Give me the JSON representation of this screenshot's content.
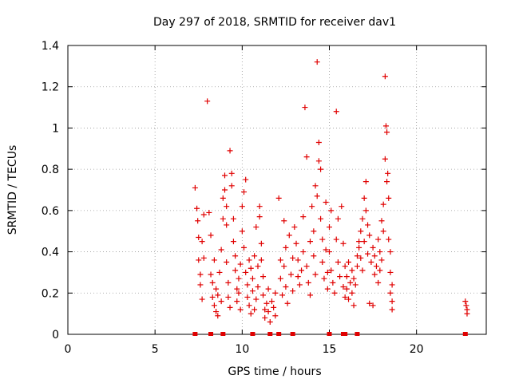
{
  "chart_data": {
    "type": "scatter",
    "title": "Day 297 of 2018, SRMTID for receiver dav1",
    "xlabel": "GPS time / hours",
    "ylabel": "SRMTID / TECUs",
    "xlim": [
      0,
      24
    ],
    "ylim": [
      0,
      1.4
    ],
    "x_ticks": [
      0,
      5,
      10,
      15,
      20
    ],
    "y_ticks": [
      0,
      0.2,
      0.4,
      0.6,
      0.8,
      1.0,
      1.2,
      1.4
    ],
    "x_tick_labels": [
      "0",
      "5",
      "10",
      "15",
      "20"
    ],
    "y_tick_labels": [
      "0",
      "0.2",
      "0.4",
      "0.6",
      "0.8",
      "1",
      "1.2",
      "1.4"
    ],
    "grid": true,
    "marker": "+",
    "marker_color": "#e00000",
    "zero_markers_x": [
      7.3,
      8.2,
      8.9,
      10.6,
      11.6,
      12.1,
      12.9,
      15.0,
      15.8,
      15.9,
      16.6,
      22.8
    ],
    "series": [
      {
        "name": "SRMTID",
        "color": "#e00000",
        "points": [
          [
            7.3,
            0.71
          ],
          [
            7.4,
            0.61
          ],
          [
            7.45,
            0.55
          ],
          [
            7.5,
            0.47
          ],
          [
            7.5,
            0.36
          ],
          [
            7.6,
            0.29
          ],
          [
            7.6,
            0.24
          ],
          [
            7.7,
            0.17
          ],
          [
            7.7,
            0.45
          ],
          [
            7.8,
            0.37
          ],
          [
            7.8,
            0.58
          ],
          [
            8.0,
            1.13
          ],
          [
            8.1,
            0.59
          ],
          [
            8.2,
            0.48
          ],
          [
            8.2,
            0.29
          ],
          [
            8.3,
            0.25
          ],
          [
            8.3,
            0.18
          ],
          [
            8.4,
            0.14
          ],
          [
            8.4,
            0.36
          ],
          [
            8.5,
            0.22
          ],
          [
            8.5,
            0.11
          ],
          [
            8.6,
            0.09
          ],
          [
            8.6,
            0.19
          ],
          [
            8.7,
            0.3
          ],
          [
            8.8,
            0.41
          ],
          [
            8.8,
            0.16
          ],
          [
            8.9,
            0.56
          ],
          [
            8.9,
            0.66
          ],
          [
            9.0,
            0.77
          ],
          [
            9.0,
            0.7
          ],
          [
            9.1,
            0.62
          ],
          [
            9.1,
            0.53
          ],
          [
            9.1,
            0.35
          ],
          [
            9.2,
            0.25
          ],
          [
            9.2,
            0.18
          ],
          [
            9.3,
            0.13
          ],
          [
            9.3,
            0.89
          ],
          [
            9.4,
            0.78
          ],
          [
            9.4,
            0.72
          ],
          [
            9.5,
            0.56
          ],
          [
            9.5,
            0.45
          ],
          [
            9.6,
            0.38
          ],
          [
            9.6,
            0.31
          ],
          [
            9.7,
            0.22
          ],
          [
            9.7,
            0.16
          ],
          [
            9.8,
            0.2
          ],
          [
            9.8,
            0.27
          ],
          [
            9.9,
            0.34
          ],
          [
            9.9,
            0.12
          ],
          [
            10.0,
            0.62
          ],
          [
            10.0,
            0.5
          ],
          [
            10.1,
            0.69
          ],
          [
            10.1,
            0.42
          ],
          [
            10.2,
            0.75
          ],
          [
            10.2,
            0.3
          ],
          [
            10.3,
            0.24
          ],
          [
            10.3,
            0.18
          ],
          [
            10.4,
            0.14
          ],
          [
            10.4,
            0.36
          ],
          [
            10.5,
            0.32
          ],
          [
            10.5,
            0.1
          ],
          [
            10.6,
            0.21
          ],
          [
            10.6,
            0.27
          ],
          [
            10.7,
            0.38
          ],
          [
            10.7,
            0.12
          ],
          [
            10.8,
            0.52
          ],
          [
            10.8,
            0.17
          ],
          [
            10.9,
            0.23
          ],
          [
            10.9,
            0.33
          ],
          [
            11.0,
            0.62
          ],
          [
            11.0,
            0.57
          ],
          [
            11.1,
            0.44
          ],
          [
            11.1,
            0.36
          ],
          [
            11.2,
            0.28
          ],
          [
            11.2,
            0.19
          ],
          [
            11.3,
            0.12
          ],
          [
            11.3,
            0.08
          ],
          [
            11.4,
            0.15
          ],
          [
            11.5,
            0.22
          ],
          [
            11.5,
            0.11
          ],
          [
            11.6,
            0.06
          ],
          [
            11.7,
            0.16
          ],
          [
            11.8,
            0.13
          ],
          [
            11.9,
            0.09
          ],
          [
            11.9,
            0.2
          ],
          [
            12.1,
            0.66
          ],
          [
            12.2,
            0.36
          ],
          [
            12.2,
            0.27
          ],
          [
            12.3,
            0.19
          ],
          [
            12.4,
            0.55
          ],
          [
            12.4,
            0.33
          ],
          [
            12.5,
            0.42
          ],
          [
            12.5,
            0.23
          ],
          [
            12.6,
            0.15
          ],
          [
            12.7,
            0.48
          ],
          [
            12.8,
            0.29
          ],
          [
            12.9,
            0.37
          ],
          [
            12.9,
            0.21
          ],
          [
            13.0,
            0.52
          ],
          [
            13.1,
            0.44
          ],
          [
            13.2,
            0.36
          ],
          [
            13.2,
            0.28
          ],
          [
            13.3,
            0.24
          ],
          [
            13.4,
            0.31
          ],
          [
            13.5,
            0.4
          ],
          [
            13.5,
            0.57
          ],
          [
            13.6,
            1.1
          ],
          [
            13.7,
            0.86
          ],
          [
            13.7,
            0.33
          ],
          [
            13.8,
            0.25
          ],
          [
            13.9,
            0.45
          ],
          [
            13.9,
            0.19
          ],
          [
            14.0,
            0.62
          ],
          [
            14.1,
            0.5
          ],
          [
            14.1,
            0.38
          ],
          [
            14.2,
            0.72
          ],
          [
            14.2,
            0.29
          ],
          [
            14.3,
            1.32
          ],
          [
            14.3,
            0.67
          ],
          [
            14.4,
            0.93
          ],
          [
            14.4,
            0.84
          ],
          [
            14.5,
            0.8
          ],
          [
            14.5,
            0.56
          ],
          [
            14.6,
            0.46
          ],
          [
            14.6,
            0.35
          ],
          [
            14.7,
            0.27
          ],
          [
            14.8,
            0.64
          ],
          [
            14.8,
            0.41
          ],
          [
            14.9,
            0.3
          ],
          [
            14.9,
            0.22
          ],
          [
            15.0,
            0.52
          ],
          [
            15.0,
            0.4
          ],
          [
            15.1,
            0.6
          ],
          [
            15.1,
            0.31
          ],
          [
            15.2,
            0.25
          ],
          [
            15.3,
            0.2
          ],
          [
            15.4,
            1.08
          ],
          [
            15.4,
            0.46
          ],
          [
            15.5,
            0.35
          ],
          [
            15.5,
            0.56
          ],
          [
            15.6,
            0.28
          ],
          [
            15.7,
            0.62
          ],
          [
            15.8,
            0.44
          ],
          [
            15.8,
            0.23
          ],
          [
            15.9,
            0.33
          ],
          [
            15.9,
            0.18
          ],
          [
            16.0,
            0.28
          ],
          [
            16.0,
            0.22
          ],
          [
            16.1,
            0.35
          ],
          [
            16.1,
            0.17
          ],
          [
            16.2,
            0.25
          ],
          [
            16.3,
            0.31
          ],
          [
            16.3,
            0.2
          ],
          [
            16.4,
            0.27
          ],
          [
            16.4,
            0.14
          ],
          [
            16.5,
            0.24
          ],
          [
            16.6,
            0.33
          ],
          [
            16.6,
            0.38
          ],
          [
            16.7,
            0.45
          ],
          [
            16.7,
            0.42
          ],
          [
            16.8,
            0.5
          ],
          [
            16.8,
            0.37
          ],
          [
            16.9,
            0.56
          ],
          [
            16.9,
            0.31
          ],
          [
            17.0,
            0.45
          ],
          [
            17.0,
            0.66
          ],
          [
            17.1,
            0.74
          ],
          [
            17.1,
            0.6
          ],
          [
            17.2,
            0.53
          ],
          [
            17.2,
            0.39
          ],
          [
            17.3,
            0.48
          ],
          [
            17.3,
            0.15
          ],
          [
            17.4,
            0.35
          ],
          [
            17.5,
            0.42
          ],
          [
            17.5,
            0.14
          ],
          [
            17.6,
            0.29
          ],
          [
            17.6,
            0.38
          ],
          [
            17.7,
            0.33
          ],
          [
            17.8,
            0.46
          ],
          [
            17.8,
            0.25
          ],
          [
            17.9,
            0.31
          ],
          [
            17.9,
            0.4
          ],
          [
            18.0,
            0.55
          ],
          [
            18.0,
            0.36
          ],
          [
            18.1,
            0.5
          ],
          [
            18.1,
            0.63
          ],
          [
            18.2,
            1.25
          ],
          [
            18.2,
            0.85
          ],
          [
            18.25,
            1.01
          ],
          [
            18.3,
            0.98
          ],
          [
            18.3,
            0.74
          ],
          [
            18.35,
            0.78
          ],
          [
            18.4,
            0.66
          ],
          [
            18.4,
            0.46
          ],
          [
            18.5,
            0.4
          ],
          [
            18.5,
            0.3
          ],
          [
            18.6,
            0.24
          ],
          [
            18.6,
            0.16
          ],
          [
            18.6,
            0.12
          ],
          [
            18.5,
            0.2
          ],
          [
            22.8,
            0.16
          ],
          [
            22.85,
            0.14
          ],
          [
            22.9,
            0.12
          ],
          [
            22.9,
            0.1
          ]
        ]
      }
    ]
  }
}
